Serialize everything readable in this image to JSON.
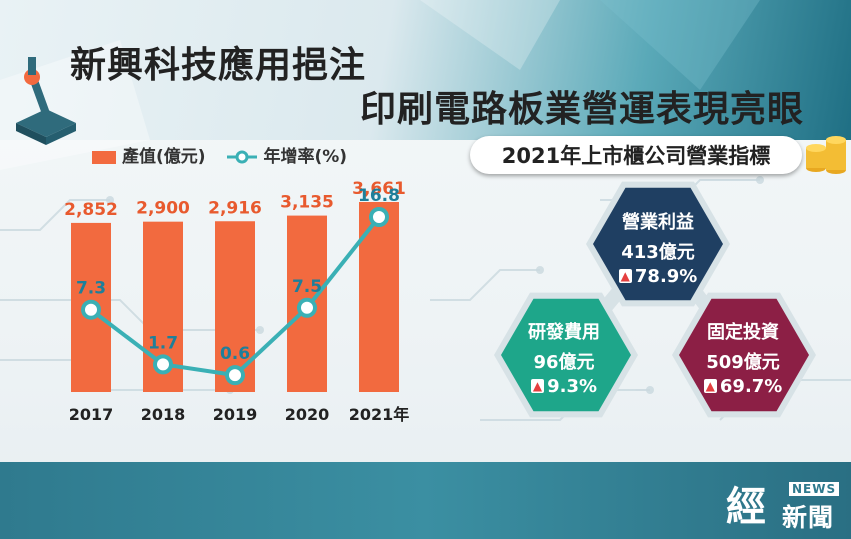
{
  "header": {
    "title_line1": "新興科技應用挹注",
    "title_line2": "印刷電路板業營運表現亮眼",
    "subtitle": "2021年上市櫃公司營業指標"
  },
  "legend": {
    "bar_label": "產值(億元)",
    "line_label": "年增率(%)"
  },
  "colors": {
    "bar": "#f26a3f",
    "line": "#3ab0b5",
    "hex_operating_profit": "#1f3f62",
    "hex_rnd": "#1ea68a",
    "hex_investment": "#8c1f45",
    "arrow": "#e53f3f"
  },
  "chart_data": {
    "type": "bar",
    "categories": [
      "2017",
      "2018",
      "2019",
      "2020",
      "2021年"
    ],
    "series": [
      {
        "name": "產值(億元)",
        "type": "bar",
        "values": [
          2852,
          2900,
          2916,
          3135,
          3661
        ],
        "labels": [
          "2,852",
          "2,900",
          "2,916",
          "3,135",
          "3,661"
        ]
      },
      {
        "name": "年增率(%)",
        "type": "line",
        "values": [
          7.3,
          1.7,
          0.6,
          7.5,
          16.8
        ],
        "labels": [
          "7.3",
          "1.7",
          "0.6",
          "7.5",
          "16.8"
        ]
      }
    ],
    "title": "",
    "xlabel": "",
    "ylabel": "",
    "bar_ylim": [
      0,
      3661
    ],
    "line_ylim": [
      0,
      16.8
    ],
    "grid": false,
    "legend_position": "top-left"
  },
  "indicators": [
    {
      "id": "operating-profit",
      "title": "營業利益",
      "value": "413億元",
      "change": "78.9%"
    },
    {
      "id": "rnd-expense",
      "title": "研發費用",
      "value": "96億元",
      "change": "9.3%"
    },
    {
      "id": "fixed-investment",
      "title": "固定投資",
      "value": "509億元",
      "change": "69.7%"
    }
  ],
  "logo": {
    "main": "經",
    "badge": "NEWS",
    "sub": "新聞"
  }
}
